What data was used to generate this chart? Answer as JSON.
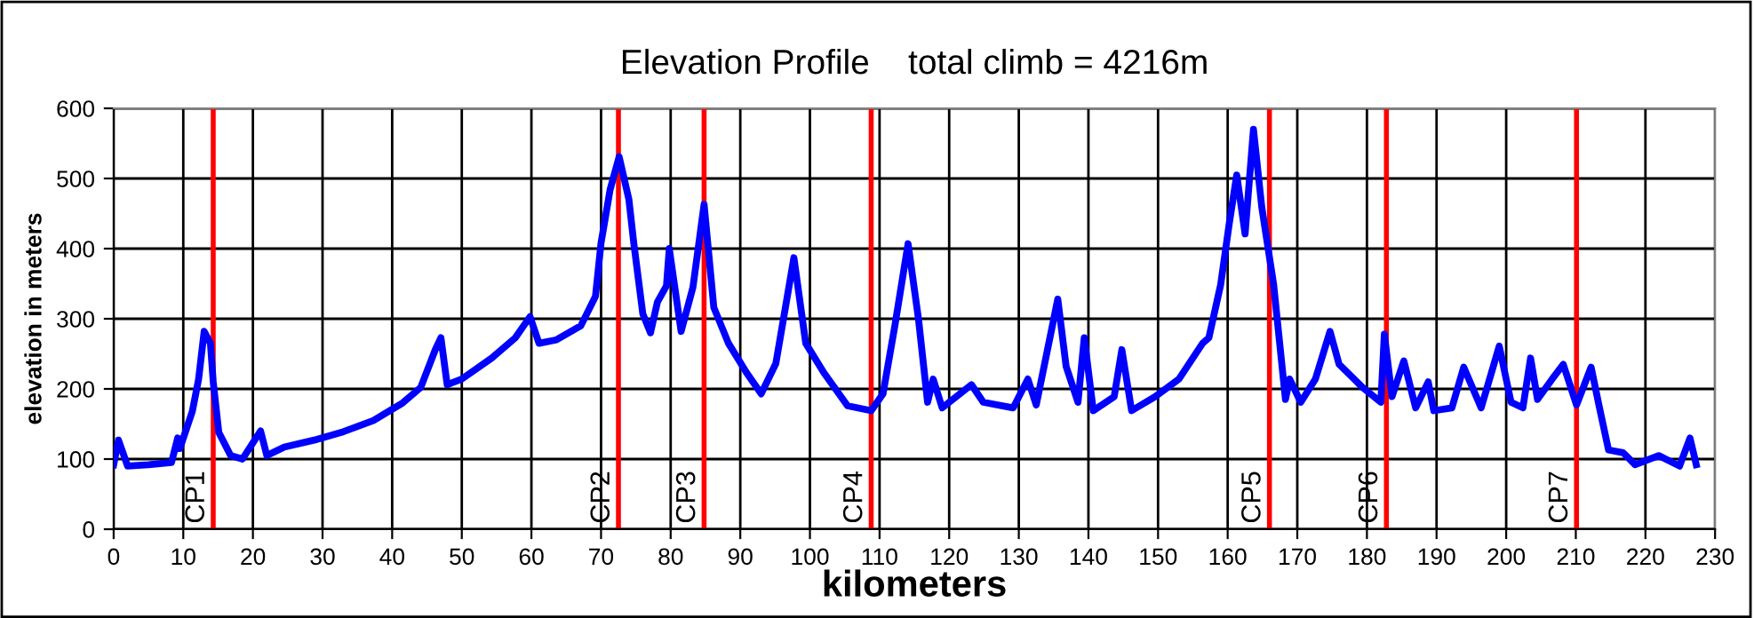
{
  "chart_data": {
    "type": "line",
    "title": "Elevation Profile    total climb = 4216m",
    "xlabel": "kilometers",
    "ylabel": "elevation in meters",
    "xlim": [
      0,
      230
    ],
    "xticks": [
      0,
      10,
      20,
      30,
      40,
      50,
      60,
      70,
      80,
      90,
      100,
      110,
      120,
      130,
      140,
      150,
      160,
      170,
      180,
      190,
      200,
      210,
      220,
      230
    ],
    "ylim": [
      0,
      600
    ],
    "yticks": [
      0,
      100,
      200,
      300,
      400,
      500,
      600
    ],
    "grid": true,
    "marker": "none",
    "line_style": "solid",
    "legend": false,
    "series": [
      {
        "color": "#0000ff",
        "x": [
          0,
          0.7,
          2,
          5,
          8.3,
          9.2,
          9.5,
          11.3,
          12.2,
          13,
          13.9,
          14.3,
          15.1,
          16.8,
          18.5,
          21.1,
          22,
          24.5,
          28.8,
          33,
          37.3,
          41.5,
          44.1,
          46.2,
          47,
          47.9,
          50,
          54.3,
          57.7,
          59.8,
          61.1,
          63.6,
          67.1,
          69.2,
          70,
          71.3,
          72.6,
          74,
          74.7,
          76,
          77.1,
          78.1,
          79.4,
          79.8,
          81.5,
          83.2,
          84.8,
          86.2,
          88.3,
          90.9,
          93,
          95.1,
          97.7,
          99.4,
          102,
          105.4,
          108.8,
          110.5,
          112.2,
          114.1,
          115.6,
          116.9,
          117.7,
          119,
          123.2,
          124.9,
          129.2,
          131.3,
          132.5,
          135.6,
          136.8,
          138.5,
          139.4,
          140.7,
          143.7,
          144.8,
          146.2,
          149.6,
          153,
          156.4,
          157.3,
          159,
          160.2,
          161.3,
          162.5,
          163.7,
          164.9,
          166.6,
          168.3,
          168.9,
          170.5,
          172.6,
          174.7,
          176,
          179.4,
          182,
          182.5,
          183.6,
          185.3,
          187,
          188.8,
          189.6,
          192.2,
          193.9,
          196.4,
          199,
          200.7,
          202.4,
          203.5,
          204.5,
          206.6,
          208.2,
          210.1,
          212.2,
          213.4,
          214.7,
          216.8,
          218.5,
          221.9,
          224.9,
          226.4,
          227.3
        ],
        "values": [
          92,
          127,
          90,
          92,
          95,
          130,
          115,
          168,
          214,
          282,
          265,
          210,
          138,
          105,
          100,
          140,
          105,
          117,
          127,
          139,
          155,
          180,
          202,
          256,
          273,
          206,
          214,
          244,
          273,
          303,
          265,
          270,
          290,
          332,
          408,
          484,
          531,
          470,
          408,
          307,
          280,
          324,
          347,
          400,
          282,
          345,
          463,
          316,
          265,
          223,
          193,
          236,
          387,
          265,
          223,
          176,
          169,
          193,
          290,
          407,
          299,
          181,
          214,
          173,
          206,
          181,
          173,
          214,
          177,
          328,
          232,
          181,
          273,
          169,
          189,
          256,
          169,
          189,
          214,
          265,
          273,
          349,
          434,
          505,
          421,
          570,
          459,
          349,
          185,
          214,
          181,
          214,
          282,
          235,
          202,
          181,
          278,
          189,
          240,
          173,
          210,
          169,
          173,
          231,
          173,
          261,
          181,
          173,
          244,
          185,
          214,
          235,
          177,
          231,
          173,
          113,
          109,
          92,
          105,
          90,
          130,
          92
        ]
      }
    ],
    "ref_lines": [
      {
        "axis": "x",
        "value": 14.3,
        "label": "CP1",
        "color": "#ff0000"
      },
      {
        "axis": "x",
        "value": 72.5,
        "label": "CP2",
        "color": "#ff0000"
      },
      {
        "axis": "x",
        "value": 84.8,
        "label": "CP3",
        "color": "#ff0000"
      },
      {
        "axis": "x",
        "value": 108.8,
        "label": "CP4",
        "color": "#ff0000"
      },
      {
        "axis": "x",
        "value": 166,
        "label": "CP5",
        "color": "#ff0000"
      },
      {
        "axis": "x",
        "value": 182.8,
        "label": "CP6",
        "color": "#ff0000"
      },
      {
        "axis": "x",
        "value": 210.1,
        "label": "CP7",
        "color": "#ff0000"
      }
    ]
  }
}
